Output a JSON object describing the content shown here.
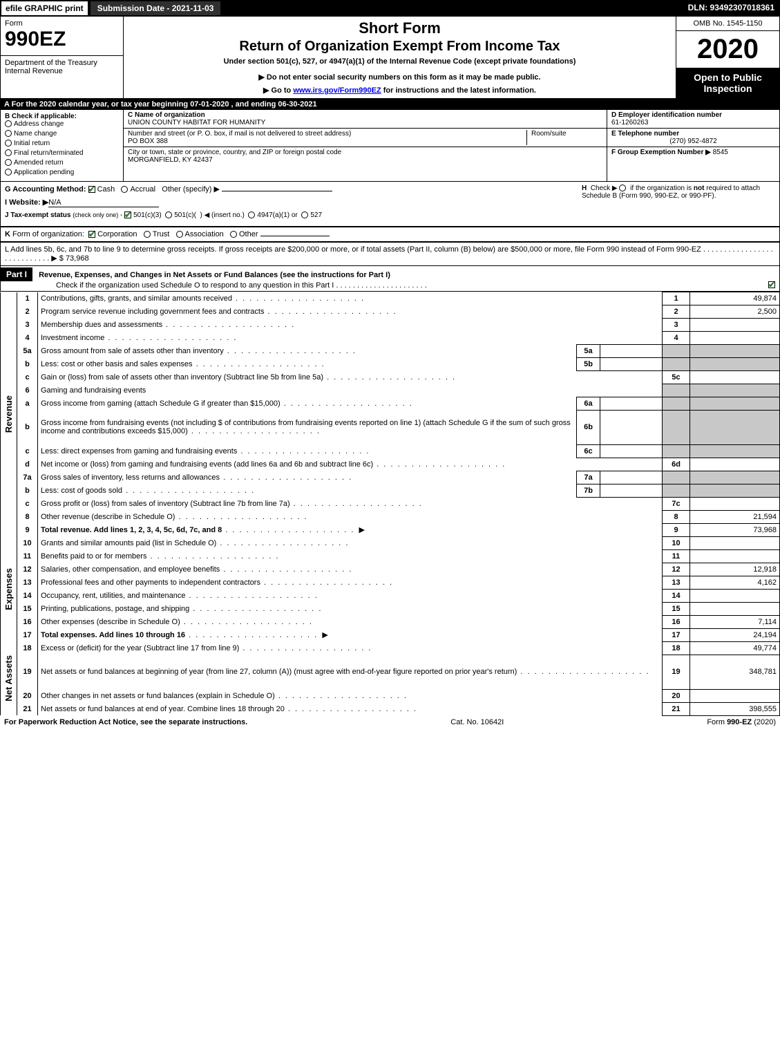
{
  "topbar": {
    "efile": "efile GRAPHIC print",
    "submission": "Submission Date - 2021-11-03",
    "dln": "DLN: 93492307018361"
  },
  "header": {
    "form_word": "Form",
    "form_code": "990EZ",
    "dept1": "Department of the Treasury",
    "dept2": "Internal Revenue",
    "title1": "Short Form",
    "title2": "Return of Organization Exempt From Income Tax",
    "subtitle": "Under section 501(c), 527, or 4947(a)(1) of the Internal Revenue Code (except private foundations)",
    "note1": "▶ Do not enter social security numbers on this form as it may be made public.",
    "note2_pre": "▶ Go to ",
    "note2_link": "www.irs.gov/Form990EZ",
    "note2_post": " for instructions and the latest information.",
    "omb": "OMB No. 1545-1150",
    "year": "2020",
    "open1": "Open to Public",
    "open2": "Inspection"
  },
  "rowA": "A For the 2020 calendar year, or tax year beginning 07-01-2020 , and ending 06-30-2021",
  "boxB": {
    "label": "B  Check if applicable:",
    "opts": [
      "Address change",
      "Name change",
      "Initial return",
      "Final return/terminated",
      "Amended return",
      "Application pending"
    ]
  },
  "boxC": {
    "name_lab": "C Name of organization",
    "name_val": "UNION COUNTY HABITAT FOR HUMANITY",
    "addr_lab": "Number and street (or P. O. box, if mail is not delivered to street address)",
    "addr_val": "PO BOX 388",
    "room_lab": "Room/suite",
    "city_lab": "City or town, state or province, country, and ZIP or foreign postal code",
    "city_val": "MORGANFIELD, KY  42437"
  },
  "boxD": {
    "lab": "D Employer identification number",
    "val": "61-1260263"
  },
  "boxE": {
    "lab": "E Telephone number",
    "val": "(270) 952-4872"
  },
  "boxF": {
    "lab": "F Group Exemption Number  ▶",
    "val": "8545"
  },
  "lineG": {
    "pre": "G Accounting Method: ",
    "cash": "Cash",
    "accrual": "Accrual",
    "other": "Other (specify) ▶"
  },
  "lineH": "H  Check ▶     if the organization is not required to attach Schedule B (Form 990, 990-EZ, or 990-PF).",
  "lineI": {
    "pre": "I Website: ▶",
    "val": "N/A"
  },
  "lineJ": "J Tax-exempt status (check only one) -    501(c)(3)    501(c)(  ) ◀ (insert no.)    4947(a)(1) or    527",
  "lineK": "K Form of organization:     Corporation     Trust     Association     Other",
  "lineL": {
    "text": "L Add lines 5b, 6c, and 7b to line 9 to determine gross receipts. If gross receipts are $200,000 or more, or if total assets (Part II, column (B) below) are $500,000 or more, file Form 990 instead of Form 990-EZ  .  .  .  .  .  .  .  .  .  .  .  .  .  .  .  .  .  .  .  .  .  .  .  .  .  .  .  .  ▶ $",
    "val": "73,968"
  },
  "partI": {
    "label": "Part I",
    "title": "Revenue, Expenses, and Changes in Net Assets or Fund Balances (see the instructions for Part I)",
    "check": "Check if the organization used Schedule O to respond to any question in this Part I  .  .  .  .  .  .  .  .  .  .  .  .  .  .  .  .  .  .  .  .  .  ."
  },
  "sections": {
    "revenue": "Revenue",
    "expenses": "Expenses",
    "netassets": "Net Assets"
  },
  "rows": [
    {
      "sec": "rev",
      "n": "1",
      "d": "Contributions, gifts, grants, and similar amounts received",
      "rn": "1",
      "rv": "49,874"
    },
    {
      "sec": "rev",
      "n": "2",
      "d": "Program service revenue including government fees and contracts",
      "rn": "2",
      "rv": "2,500"
    },
    {
      "sec": "rev",
      "n": "3",
      "d": "Membership dues and assessments",
      "rn": "3",
      "rv": ""
    },
    {
      "sec": "rev",
      "n": "4",
      "d": "Investment income",
      "rn": "4",
      "rv": ""
    },
    {
      "sec": "rev",
      "n": "5a",
      "d": "Gross amount from sale of assets other than inventory",
      "in": "5a",
      "iv": "",
      "grey": true
    },
    {
      "sec": "rev",
      "n": "b",
      "d": "Less: cost or other basis and sales expenses",
      "in": "5b",
      "iv": "",
      "grey": true
    },
    {
      "sec": "rev",
      "n": "c",
      "d": "Gain or (loss) from sale of assets other than inventory (Subtract line 5b from line 5a)",
      "rn": "5c",
      "rv": ""
    },
    {
      "sec": "rev",
      "n": "6",
      "d": "Gaming and fundraising events",
      "grey": true,
      "nobox": true
    },
    {
      "sec": "rev",
      "n": "a",
      "d": "Gross income from gaming (attach Schedule G if greater than $15,000)",
      "in": "6a",
      "iv": "",
      "grey": true
    },
    {
      "sec": "rev",
      "n": "b",
      "d": "Gross income from fundraising events (not including $                     of contributions from fundraising events reported on line 1) (attach Schedule G if the sum of such gross income and contributions exceeds $15,000)",
      "in": "6b",
      "iv": "",
      "grey": true,
      "tall": true
    },
    {
      "sec": "rev",
      "n": "c",
      "d": "Less: direct expenses from gaming and fundraising events",
      "in": "6c",
      "iv": "",
      "grey": true
    },
    {
      "sec": "rev",
      "n": "d",
      "d": "Net income or (loss) from gaming and fundraising events (add lines 6a and 6b and subtract line 6c)",
      "rn": "6d",
      "rv": ""
    },
    {
      "sec": "rev",
      "n": "7a",
      "d": "Gross sales of inventory, less returns and allowances",
      "in": "7a",
      "iv": "",
      "grey": true
    },
    {
      "sec": "rev",
      "n": "b",
      "d": "Less: cost of goods sold",
      "in": "7b",
      "iv": "",
      "grey": true
    },
    {
      "sec": "rev",
      "n": "c",
      "d": "Gross profit or (loss) from sales of inventory (Subtract line 7b from line 7a)",
      "rn": "7c",
      "rv": ""
    },
    {
      "sec": "rev",
      "n": "8",
      "d": "Other revenue (describe in Schedule O)",
      "rn": "8",
      "rv": "21,594"
    },
    {
      "sec": "rev",
      "n": "9",
      "d": "Total revenue. Add lines 1, 2, 3, 4, 5c, 6d, 7c, and 8",
      "rn": "9",
      "rv": "73,968",
      "bold": true,
      "arrow": true
    },
    {
      "sec": "exp",
      "n": "10",
      "d": "Grants and similar amounts paid (list in Schedule O)",
      "rn": "10",
      "rv": ""
    },
    {
      "sec": "exp",
      "n": "11",
      "d": "Benefits paid to or for members",
      "rn": "11",
      "rv": ""
    },
    {
      "sec": "exp",
      "n": "12",
      "d": "Salaries, other compensation, and employee benefits",
      "rn": "12",
      "rv": "12,918"
    },
    {
      "sec": "exp",
      "n": "13",
      "d": "Professional fees and other payments to independent contractors",
      "rn": "13",
      "rv": "4,162"
    },
    {
      "sec": "exp",
      "n": "14",
      "d": "Occupancy, rent, utilities, and maintenance",
      "rn": "14",
      "rv": ""
    },
    {
      "sec": "exp",
      "n": "15",
      "d": "Printing, publications, postage, and shipping",
      "rn": "15",
      "rv": ""
    },
    {
      "sec": "exp",
      "n": "16",
      "d": "Other expenses (describe in Schedule O)",
      "rn": "16",
      "rv": "7,114"
    },
    {
      "sec": "exp",
      "n": "17",
      "d": "Total expenses. Add lines 10 through 16",
      "rn": "17",
      "rv": "24,194",
      "bold": true,
      "arrow": true
    },
    {
      "sec": "net",
      "n": "18",
      "d": "Excess or (deficit) for the year (Subtract line 17 from line 9)",
      "rn": "18",
      "rv": "49,774"
    },
    {
      "sec": "net",
      "n": "19",
      "d": "Net assets or fund balances at beginning of year (from line 27, column (A)) (must agree with end-of-year figure reported on prior year's return)",
      "rn": "19",
      "rv": "348,781",
      "tall": true
    },
    {
      "sec": "net",
      "n": "20",
      "d": "Other changes in net assets or fund balances (explain in Schedule O)",
      "rn": "20",
      "rv": ""
    },
    {
      "sec": "net",
      "n": "21",
      "d": "Net assets or fund balances at end of year. Combine lines 18 through 20",
      "rn": "21",
      "rv": "398,555"
    }
  ],
  "footer": {
    "left": "For Paperwork Reduction Act Notice, see the separate instructions.",
    "mid": "Cat. No. 10642I",
    "right_pre": "Form ",
    "right_bold": "990-EZ",
    "right_post": " (2020)"
  }
}
